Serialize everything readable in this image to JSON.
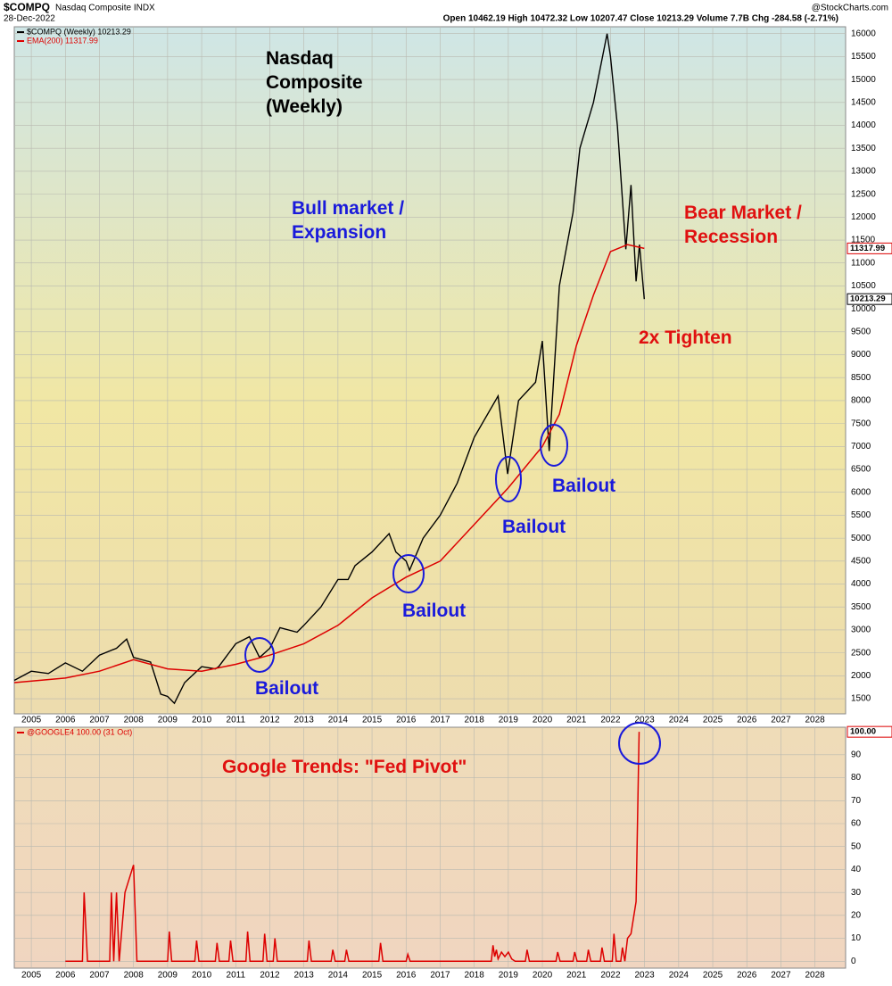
{
  "header": {
    "symbol": "$COMPQ",
    "name": "Nasdaq Composite INDX",
    "date": "28-Dec-2022",
    "quote": "Open 10462.19 High 10472.32 Low 10207.47 Close 10213.29 Volume 7.7B Chg -284.58 (-2.71%)",
    "source": "@StockCharts.com"
  },
  "chart_data": [
    {
      "type": "line",
      "xlim": [
        2004.5,
        2028.9
      ],
      "xticks": [
        2005,
        2006,
        2007,
        2008,
        2009,
        2010,
        2011,
        2012,
        2013,
        2014,
        2015,
        2016,
        2017,
        2018,
        2019,
        2020,
        2021,
        2022,
        2023,
        2024,
        2025,
        2026,
        2027,
        2028
      ],
      "ylim": [
        1170,
        16150
      ],
      "yticks": [
        1500,
        2000,
        2500,
        3000,
        3500,
        4000,
        4500,
        5000,
        5500,
        6000,
        6500,
        7000,
        7500,
        8000,
        8500,
        9000,
        9500,
        10000,
        10500,
        11000,
        11500,
        12000,
        12500,
        13000,
        13500,
        14000,
        14500,
        15000,
        15500,
        16000
      ],
      "grid": true,
      "series": [
        {
          "name": "$COMPQ (Weekly) 10213.29",
          "color": "#000000",
          "end_label": "10213.29",
          "x": [
            2004.5,
            2005.0,
            2005.5,
            2006.0,
            2006.5,
            2007.0,
            2007.5,
            2007.8,
            2008.0,
            2008.5,
            2008.8,
            2009.0,
            2009.2,
            2009.5,
            2010.0,
            2010.4,
            2010.5,
            2011.0,
            2011.4,
            2011.7,
            2012.0,
            2012.3,
            2012.8,
            2013.0,
            2013.5,
            2014.0,
            2014.3,
            2014.5,
            2015.0,
            2015.5,
            2015.7,
            2016.0,
            2016.1,
            2016.5,
            2017.0,
            2017.5,
            2018.0,
            2018.7,
            2018.98,
            2019.3,
            2019.8,
            2020.0,
            2020.2,
            2020.5,
            2020.9,
            2021.1,
            2021.5,
            2021.9,
            2022.0,
            2022.2,
            2022.45,
            2022.6,
            2022.75,
            2022.85,
            2022.99
          ],
          "values": [
            1900,
            2100,
            2050,
            2280,
            2100,
            2450,
            2600,
            2800,
            2400,
            2300,
            1600,
            1550,
            1400,
            1850,
            2200,
            2150,
            2200,
            2700,
            2850,
            2400,
            2600,
            3050,
            2950,
            3100,
            3500,
            4100,
            4100,
            4400,
            4700,
            5100,
            4700,
            4500,
            4300,
            5000,
            5500,
            6200,
            7200,
            8100,
            6400,
            8000,
            8400,
            9300,
            6900,
            10500,
            12100,
            13500,
            14500,
            16000,
            15500,
            14000,
            11300,
            12700,
            10600,
            11400,
            10213
          ]
        },
        {
          "name": "EMA(200) 11317.99",
          "color": "#dd0000",
          "end_label": "11317.99",
          "x": [
            2004.5,
            2006,
            2007,
            2008,
            2009,
            2010,
            2011,
            2012,
            2013,
            2014,
            2015,
            2016,
            2017,
            2018,
            2019,
            2020,
            2020.5,
            2021,
            2021.5,
            2022,
            2022.5,
            2022.99
          ],
          "values": [
            1850,
            1950,
            2100,
            2350,
            2150,
            2100,
            2250,
            2450,
            2700,
            3100,
            3700,
            4150,
            4500,
            5300,
            6100,
            7000,
            7700,
            9200,
            10300,
            11250,
            11400,
            11318
          ]
        }
      ],
      "annotations": [
        {
          "lines": [
            "Nasdaq",
            "Composite",
            "(Weekly)"
          ],
          "color": "#000000"
        },
        {
          "lines": [
            "Bull market /",
            "Expansion"
          ],
          "color": "#1a1adb"
        },
        {
          "lines": [
            "Bear Market /",
            "Recession"
          ],
          "color": "#e01010"
        },
        {
          "lines": [
            "2x Tighten"
          ],
          "color": "#e01010"
        },
        {
          "lines": [
            "Bailout"
          ],
          "color": "#1a1adb"
        },
        {
          "lines": [
            "Bailout"
          ],
          "color": "#1a1adb"
        },
        {
          "lines": [
            "Bailout"
          ],
          "color": "#1a1adb"
        },
        {
          "lines": [
            "Bailout"
          ],
          "color": "#1a1adb"
        }
      ]
    },
    {
      "type": "line",
      "xlim": [
        2004.5,
        2028.9
      ],
      "xticks": [
        2005,
        2006,
        2007,
        2008,
        2009,
        2010,
        2011,
        2012,
        2013,
        2014,
        2015,
        2016,
        2017,
        2018,
        2019,
        2020,
        2021,
        2022,
        2023,
        2024,
        2025,
        2026,
        2027,
        2028
      ],
      "ylim": [
        -3,
        102
      ],
      "yticks": [
        0,
        10,
        20,
        30,
        40,
        50,
        60,
        70,
        80,
        90
      ],
      "grid": true,
      "series": [
        {
          "name": "@GOOGLE4 100.00 (31 Oct)",
          "color": "#dd0000",
          "end_label": "100.00",
          "x": [
            2006.0,
            2006.5,
            2006.55,
            2006.65,
            2007.3,
            2007.35,
            2007.42,
            2007.5,
            2007.58,
            2007.75,
            2008.0,
            2008.1,
            2009.0,
            2009.05,
            2009.12,
            2009.8,
            2009.85,
            2009.92,
            2010.4,
            2010.45,
            2010.52,
            2010.8,
            2010.85,
            2010.92,
            2011.3,
            2011.35,
            2011.42,
            2011.8,
            2011.85,
            2011.92,
            2012.1,
            2012.15,
            2012.22,
            2013.1,
            2013.15,
            2013.22,
            2013.8,
            2013.85,
            2013.92,
            2014.2,
            2014.25,
            2014.32,
            2015.2,
            2015.25,
            2015.32,
            2016.0,
            2016.05,
            2016.12,
            2018.5,
            2018.55,
            2018.6,
            2018.65,
            2018.7,
            2018.8,
            2018.9,
            2019.0,
            2019.1,
            2019.2,
            2019.5,
            2019.55,
            2019.62,
            2020.4,
            2020.45,
            2020.52,
            2020.9,
            2020.95,
            2021.02,
            2021.3,
            2021.35,
            2021.42,
            2021.7,
            2021.75,
            2021.82,
            2022.05,
            2022.1,
            2022.17,
            2022.3,
            2022.35,
            2022.42,
            2022.5,
            2022.6,
            2022.75,
            2022.84
          ],
          "values": [
            0,
            0,
            30,
            0,
            0,
            30,
            0,
            30,
            0,
            30,
            42,
            0,
            0,
            13,
            0,
            0,
            9,
            0,
            0,
            8,
            0,
            0,
            9,
            0,
            0,
            13,
            0,
            0,
            12,
            0,
            0,
            10,
            0,
            0,
            9,
            0,
            0,
            5,
            0,
            0,
            5,
            0,
            0,
            8,
            0,
            0,
            3,
            0,
            0,
            7,
            2,
            5,
            1,
            4,
            2,
            4,
            1,
            0,
            0,
            5,
            0,
            0,
            4,
            0,
            0,
            4,
            0,
            0,
            5,
            0,
            0,
            6,
            0,
            0,
            12,
            0,
            0,
            6,
            0,
            10,
            12,
            26,
            100
          ]
        }
      ],
      "annotations": [
        {
          "lines": [
            "Google Trends: \"Fed Pivot\""
          ],
          "color": "#e01010"
        }
      ]
    }
  ]
}
